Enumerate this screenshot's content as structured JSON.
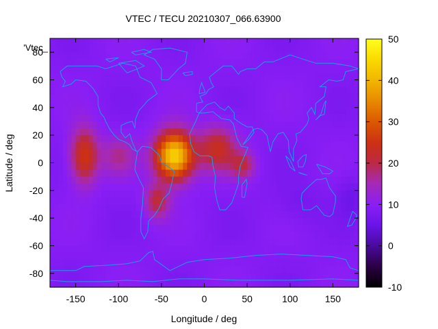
{
  "chart_data": {
    "type": "heatmap",
    "title": "VTEC / TECU 20210307_066.63900",
    "xlabel": "Longitude / deg",
    "ylabel": "Latitude / deg",
    "xlim": [
      -180,
      180
    ],
    "ylim": [
      -90,
      90
    ],
    "x_ticks": [
      -150,
      -100,
      -50,
      0,
      50,
      100,
      150
    ],
    "y_ticks": [
      -80,
      -60,
      -40,
      -20,
      0,
      20,
      40,
      60,
      80
    ],
    "colorbar": {
      "range": [
        -10,
        50
      ],
      "ticks": [
        -10,
        0,
        10,
        20,
        30,
        40,
        50
      ]
    },
    "series_label": "'Vtec_",
    "background_value": 9,
    "overlay": "coastlines",
    "colors": {
      "coastline": "#1a9cf0",
      "frame": "#000000"
    },
    "peaks": [
      {
        "lon": -35,
        "lat": 5,
        "value": 46
      },
      {
        "lon": -140,
        "lat": 5,
        "value": 27
      },
      {
        "lon": 20,
        "lat": 10,
        "value": 24
      },
      {
        "lon": -55,
        "lat": -30,
        "value": 22
      },
      {
        "lon": 40,
        "lat": 0,
        "value": 20
      }
    ]
  }
}
